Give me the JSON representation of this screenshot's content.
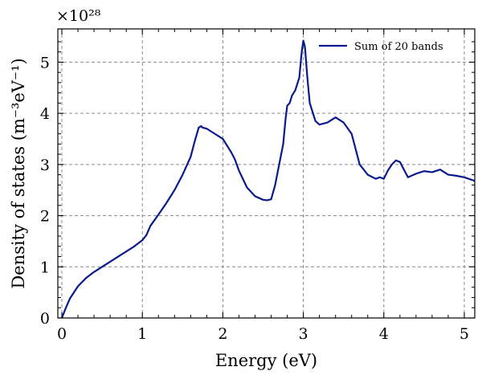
{
  "chart_data": {
    "type": "line",
    "title": "",
    "xlabel": "Energy (eV)",
    "ylabel": "Density of states (m⁻³eV⁻¹)",
    "y_multiplier": "×10²⁸",
    "xlim": [
      -0.05,
      5.13
    ],
    "ylim": [
      0,
      5.65
    ],
    "x_ticks": [
      "0",
      "1",
      "2",
      "3",
      "4",
      "5"
    ],
    "y_ticks": [
      "0",
      "1",
      "2",
      "3",
      "4",
      "5"
    ],
    "grid": true,
    "legend_position": "top-right",
    "line_color": "#0a1a8c",
    "series": [
      {
        "name": "Sum of 20 bands",
        "x": [
          0.0,
          0.05,
          0.1,
          0.15,
          0.2,
          0.25,
          0.3,
          0.4,
          0.5,
          0.6,
          0.7,
          0.8,
          0.9,
          1.0,
          1.05,
          1.1,
          1.2,
          1.3,
          1.4,
          1.5,
          1.6,
          1.65,
          1.7,
          1.73,
          1.75,
          1.8,
          1.9,
          2.0,
          2.1,
          2.15,
          2.2,
          2.3,
          2.4,
          2.5,
          2.55,
          2.6,
          2.65,
          2.7,
          2.75,
          2.78,
          2.8,
          2.83,
          2.86,
          2.9,
          2.95,
          2.98,
          3.0,
          3.02,
          3.05,
          3.08,
          3.1,
          3.15,
          3.2,
          3.3,
          3.4,
          3.5,
          3.6,
          3.65,
          3.7,
          3.8,
          3.9,
          3.95,
          4.0,
          4.05,
          4.1,
          4.15,
          4.2,
          4.25,
          4.3,
          4.4,
          4.5,
          4.6,
          4.7,
          4.8,
          4.9,
          5.0,
          5.13
        ],
        "y": [
          0.0,
          0.2,
          0.38,
          0.5,
          0.62,
          0.7,
          0.78,
          0.9,
          1.0,
          1.1,
          1.2,
          1.3,
          1.4,
          1.52,
          1.62,
          1.8,
          2.02,
          2.25,
          2.5,
          2.8,
          3.15,
          3.45,
          3.72,
          3.75,
          3.72,
          3.7,
          3.6,
          3.5,
          3.25,
          3.1,
          2.88,
          2.55,
          2.38,
          2.31,
          2.3,
          2.32,
          2.6,
          3.0,
          3.4,
          3.9,
          4.15,
          4.2,
          4.35,
          4.45,
          4.7,
          5.2,
          5.42,
          5.3,
          4.7,
          4.2,
          4.1,
          3.85,
          3.78,
          3.82,
          3.92,
          3.82,
          3.6,
          3.3,
          3.0,
          2.8,
          2.72,
          2.75,
          2.72,
          2.88,
          3.0,
          3.08,
          3.05,
          2.9,
          2.75,
          2.82,
          2.87,
          2.85,
          2.9,
          2.8,
          2.78,
          2.75,
          2.68
        ]
      }
    ]
  }
}
